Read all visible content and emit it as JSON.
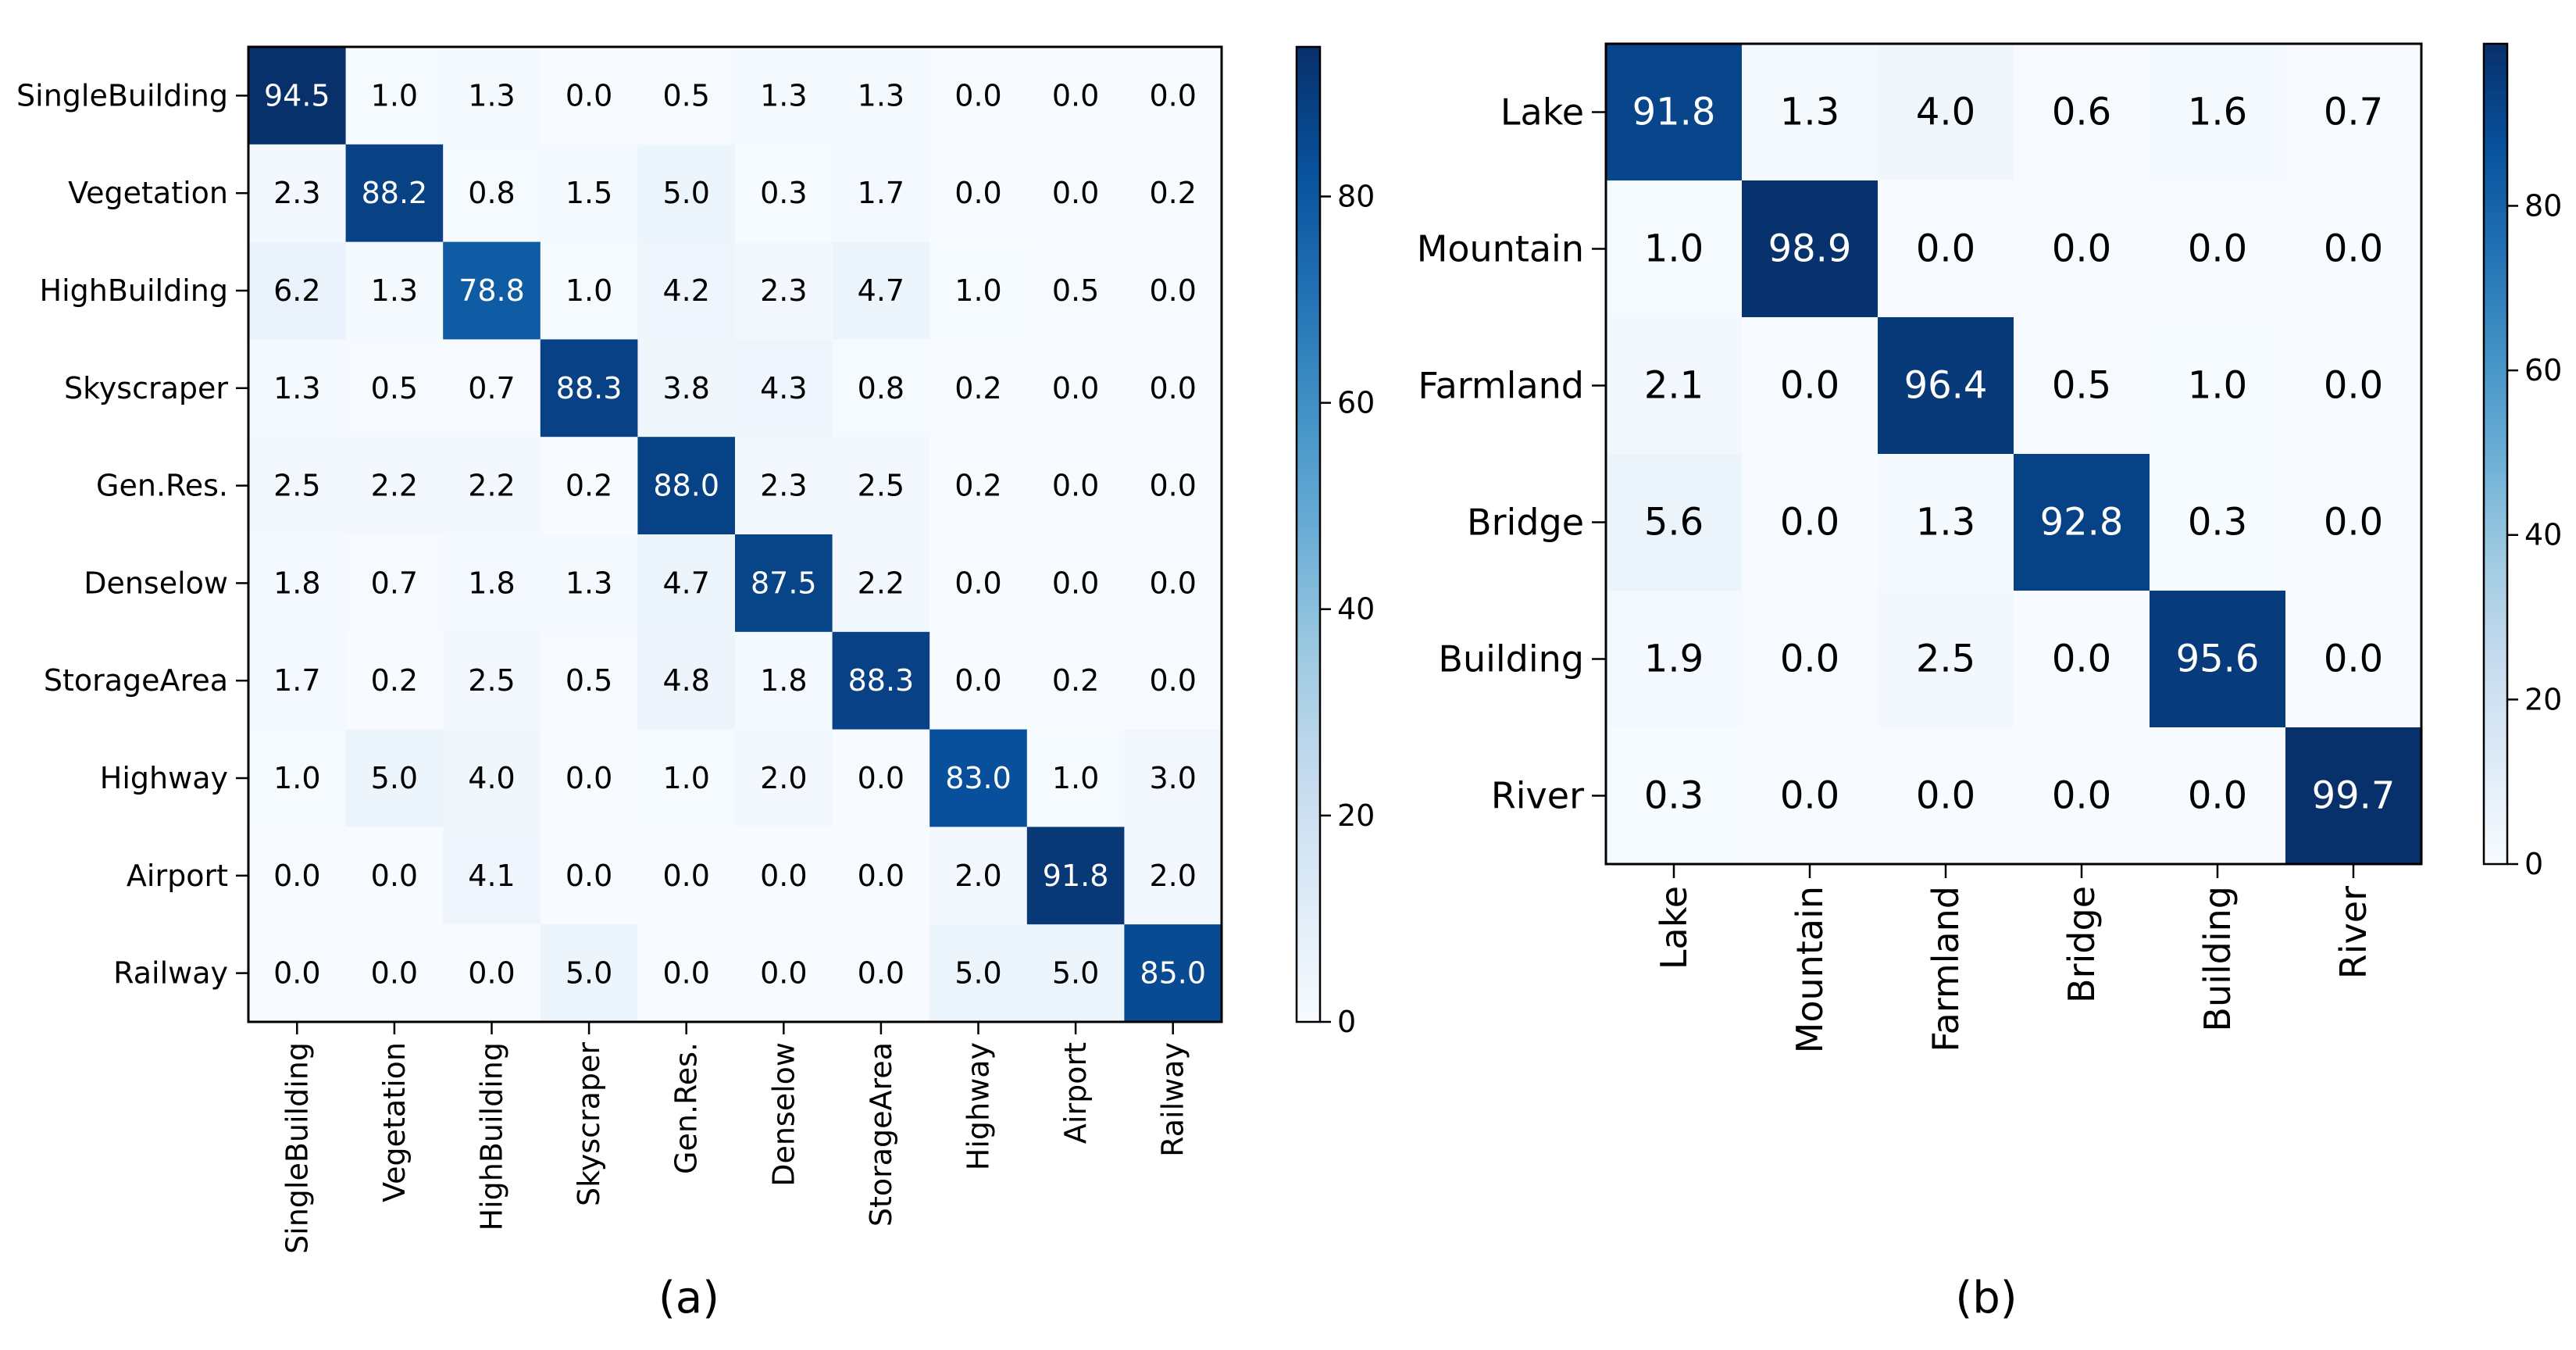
{
  "figure": {
    "panel_labels": [
      "(a)",
      "(b)"
    ]
  },
  "chart_data": [
    {
      "type": "heatmap",
      "panel": "(a)",
      "title": "",
      "xlabel": "",
      "ylabel": "",
      "row_labels": [
        "SingleBuilding",
        "Vegetation",
        "HighBuilding",
        "Skyscraper",
        "Gen.Res.",
        "Denselow",
        "StorageArea",
        "Highway",
        "Airport",
        "Railway"
      ],
      "col_labels": [
        "SingleBuilding",
        "Vegetation",
        "HighBuilding",
        "Skyscraper",
        "Gen.Res.",
        "Denselow",
        "StorageArea",
        "Highway",
        "Airport",
        "Railway"
      ],
      "values": [
        [
          94.5,
          1.0,
          1.3,
          0.0,
          0.5,
          1.3,
          1.3,
          0.0,
          0.0,
          0.0
        ],
        [
          2.3,
          88.2,
          0.8,
          1.5,
          5.0,
          0.3,
          1.7,
          0.0,
          0.0,
          0.2
        ],
        [
          6.2,
          1.3,
          78.8,
          1.0,
          4.2,
          2.3,
          4.7,
          1.0,
          0.5,
          0.0
        ],
        [
          1.3,
          0.5,
          0.7,
          88.3,
          3.8,
          4.3,
          0.8,
          0.2,
          0.0,
          0.0
        ],
        [
          2.5,
          2.2,
          2.2,
          0.2,
          88.0,
          2.3,
          2.5,
          0.2,
          0.0,
          0.0
        ],
        [
          1.8,
          0.7,
          1.8,
          1.3,
          4.7,
          87.5,
          2.2,
          0.0,
          0.0,
          0.0
        ],
        [
          1.7,
          0.2,
          2.5,
          0.5,
          4.8,
          1.8,
          88.3,
          0.0,
          0.2,
          0.0
        ],
        [
          1.0,
          5.0,
          4.0,
          0.0,
          1.0,
          2.0,
          0.0,
          83.0,
          1.0,
          3.0
        ],
        [
          0.0,
          0.0,
          4.1,
          0.0,
          0.0,
          0.0,
          0.0,
          2.0,
          91.8,
          2.0
        ],
        [
          0.0,
          0.0,
          0.0,
          5.0,
          0.0,
          0.0,
          0.0,
          5.0,
          5.0,
          85.0
        ]
      ],
      "colorbar": {
        "range": [
          0,
          94.5
        ],
        "ticks": [
          0,
          20,
          40,
          60,
          80
        ]
      },
      "colormap": "Blues",
      "grid": false
    },
    {
      "type": "heatmap",
      "panel": "(b)",
      "title": "",
      "xlabel": "",
      "ylabel": "",
      "row_labels": [
        "Lake",
        "Mountain",
        "Farmland",
        "Bridge",
        "Building",
        "River"
      ],
      "col_labels": [
        "Lake",
        "Mountain",
        "Farmland",
        "Bridge",
        "Building",
        "River"
      ],
      "values": [
        [
          91.8,
          1.3,
          4.0,
          0.6,
          1.6,
          0.7
        ],
        [
          1.0,
          98.9,
          0.0,
          0.0,
          0.0,
          0.0
        ],
        [
          2.1,
          0.0,
          96.4,
          0.5,
          1.0,
          0.0
        ],
        [
          5.6,
          0.0,
          1.3,
          92.8,
          0.3,
          0.0
        ],
        [
          1.9,
          0.0,
          2.5,
          0.0,
          95.6,
          0.0
        ],
        [
          0.3,
          0.0,
          0.0,
          0.0,
          0.0,
          99.7
        ]
      ],
      "colorbar": {
        "range": [
          0,
          99.7
        ],
        "ticks": [
          0,
          20,
          40,
          60,
          80
        ]
      },
      "colormap": "Blues",
      "grid": false
    }
  ]
}
